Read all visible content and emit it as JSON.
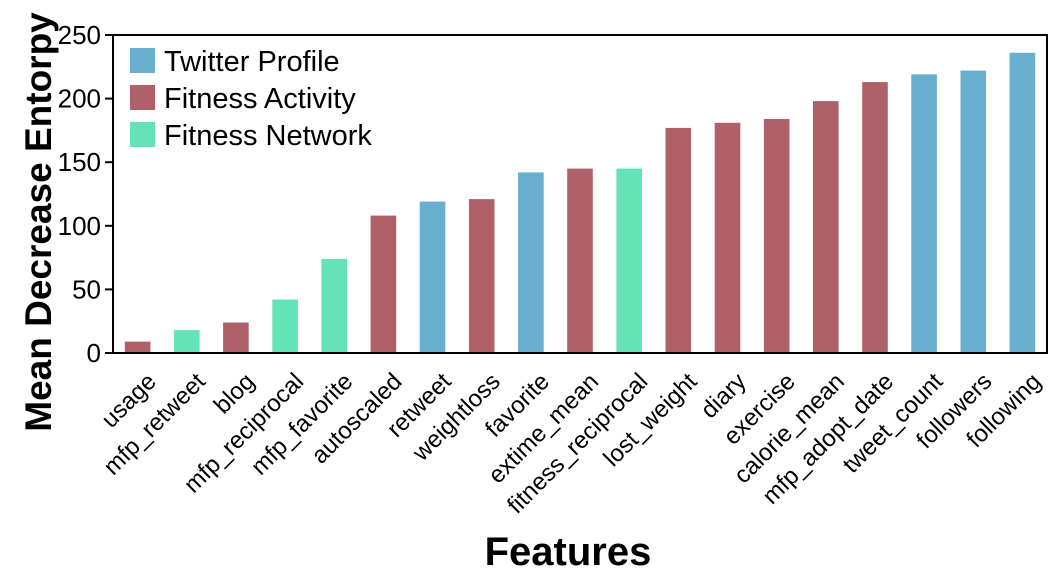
{
  "chart_data": {
    "type": "bar",
    "xlabel": "Features",
    "ylabel": "Mean Decrease Entorpy",
    "ylim": [
      0,
      250
    ],
    "yticks": [
      "0",
      "50",
      "100",
      "150",
      "200",
      "250"
    ],
    "grid": false,
    "legend_position": "top-left",
    "groups": [
      {
        "name": "Twitter Profile",
        "color": "#67aecf"
      },
      {
        "name": "Fitness Activity",
        "color": "#b06068"
      },
      {
        "name": "Fitness Network",
        "color": "#63e3b6"
      }
    ],
    "categories": [
      "usage",
      "mfp_retweet",
      "blog",
      "mfp_reciprocal",
      "mfp_favorite",
      "autoscaled",
      "retweet",
      "weightloss",
      "favorite",
      "extime_mean",
      "fitness_reciprocal",
      "lost_weight",
      "diary",
      "exercise",
      "calorie_mean",
      "mfp_adopt_date",
      "tweet_count",
      "followers",
      "following"
    ],
    "values": [
      9,
      18,
      24,
      42,
      74,
      108,
      119,
      121,
      142,
      145,
      145,
      177,
      181,
      184,
      198,
      213,
      219,
      222,
      236
    ],
    "group_of_bar": [
      "Fitness Activity",
      "Fitness Network",
      "Fitness Activity",
      "Fitness Network",
      "Fitness Network",
      "Fitness Activity",
      "Twitter Profile",
      "Fitness Activity",
      "Twitter Profile",
      "Fitness Activity",
      "Fitness Network",
      "Fitness Activity",
      "Fitness Activity",
      "Fitness Activity",
      "Fitness Activity",
      "Fitness Activity",
      "Twitter Profile",
      "Twitter Profile",
      "Twitter Profile"
    ]
  }
}
